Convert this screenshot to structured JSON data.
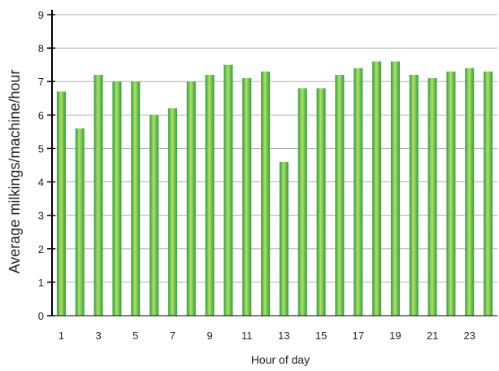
{
  "chart_data": {
    "type": "bar",
    "xlabel": "Hour of day",
    "ylabel": "Average milkings/machine/hour",
    "ylim": [
      0,
      9
    ],
    "yticks": [
      "0",
      "1",
      "2",
      "3",
      "4",
      "5",
      "6",
      "7",
      "8",
      "9"
    ],
    "categories": [
      "1",
      "2",
      "3",
      "4",
      "5",
      "6",
      "7",
      "8",
      "9",
      "10",
      "11",
      "12",
      "13",
      "14",
      "15",
      "16",
      "17",
      "18",
      "19",
      "20",
      "21",
      "22",
      "23",
      "24"
    ],
    "xtick_labels": [
      "1",
      "3",
      "5",
      "7",
      "9",
      "11",
      "13",
      "15",
      "17",
      "19",
      "21",
      "23"
    ],
    "values": [
      6.7,
      5.6,
      7.2,
      7.0,
      7.0,
      6.0,
      6.2,
      7.0,
      7.2,
      7.5,
      7.1,
      7.3,
      4.6,
      6.8,
      6.8,
      7.2,
      7.4,
      7.6,
      7.6,
      7.2,
      7.1,
      7.3,
      7.4,
      7.3
    ],
    "grid": true,
    "colors": {
      "bar_light": "#b2df6a",
      "bar_dark": "#2e9e3a",
      "grid": "#b0b0b0",
      "axis": "#000000"
    }
  }
}
